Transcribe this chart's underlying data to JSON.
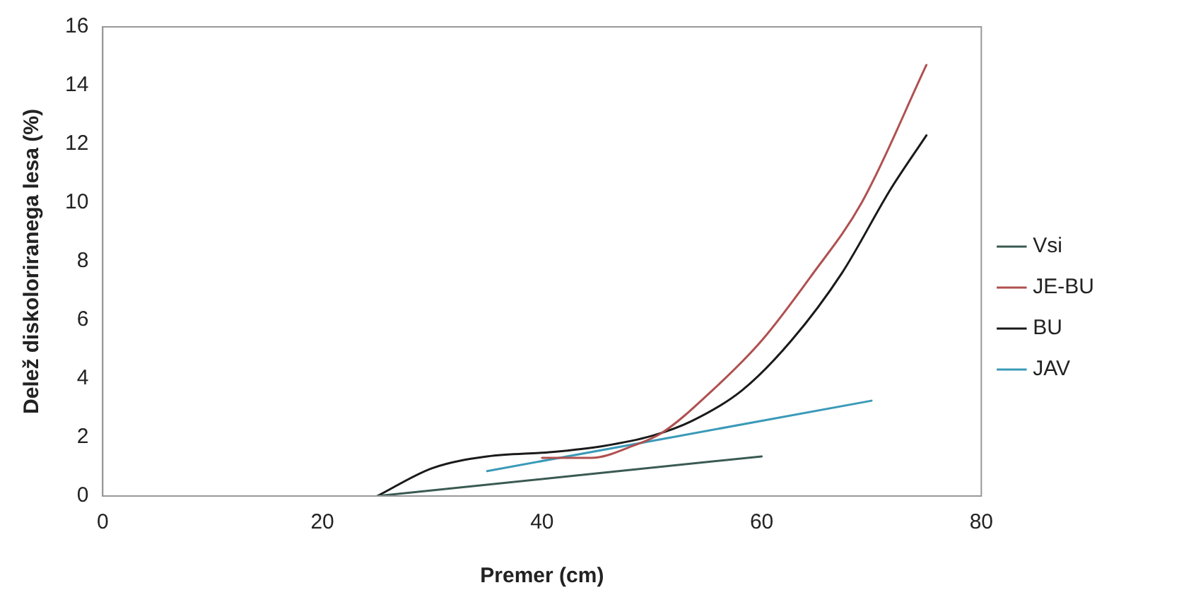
{
  "chart_data": {
    "type": "line",
    "xlabel": "Premer (cm)",
    "ylabel": "Delež diskoloriranega lesa (%)",
    "xlim": [
      0,
      80
    ],
    "xticks": [
      0,
      20,
      40,
      60,
      80
    ],
    "ylim": [
      0,
      16
    ],
    "yticks": [
      0,
      2,
      4,
      6,
      8,
      10,
      12,
      14,
      16
    ],
    "grid": false,
    "legend": "right",
    "marker": "none",
    "line_style": "solid",
    "series": [
      {
        "name": "Vsi",
        "color": "#3a5a52",
        "x": [
          25,
          60
        ],
        "values": [
          0,
          1.35
        ]
      },
      {
        "name": "JE-BU",
        "color": "#b05050",
        "x": [
          40,
          44.5,
          48.2,
          50.9,
          55.5,
          60,
          64.5,
          69.1,
          75
        ],
        "values": [
          1.3,
          1.3,
          1.7,
          2.15,
          3.6,
          5.3,
          7.5,
          10,
          14.7
        ]
      },
      {
        "name": "BU",
        "color": "#1a1a1a",
        "x": [
          25,
          30,
          35,
          40.9,
          45.5,
          50,
          53.6,
          58.2,
          62.7,
          67.3,
          71.8,
          75
        ],
        "values": [
          0,
          0.95,
          1.35,
          1.5,
          1.7,
          2.05,
          2.55,
          3.6,
          5.3,
          7.6,
          10.5,
          12.3
        ]
      },
      {
        "name": "JAV",
        "color": "#3a9ab8",
        "x": [
          35,
          70
        ],
        "values": [
          0.85,
          3.25
        ]
      }
    ]
  }
}
